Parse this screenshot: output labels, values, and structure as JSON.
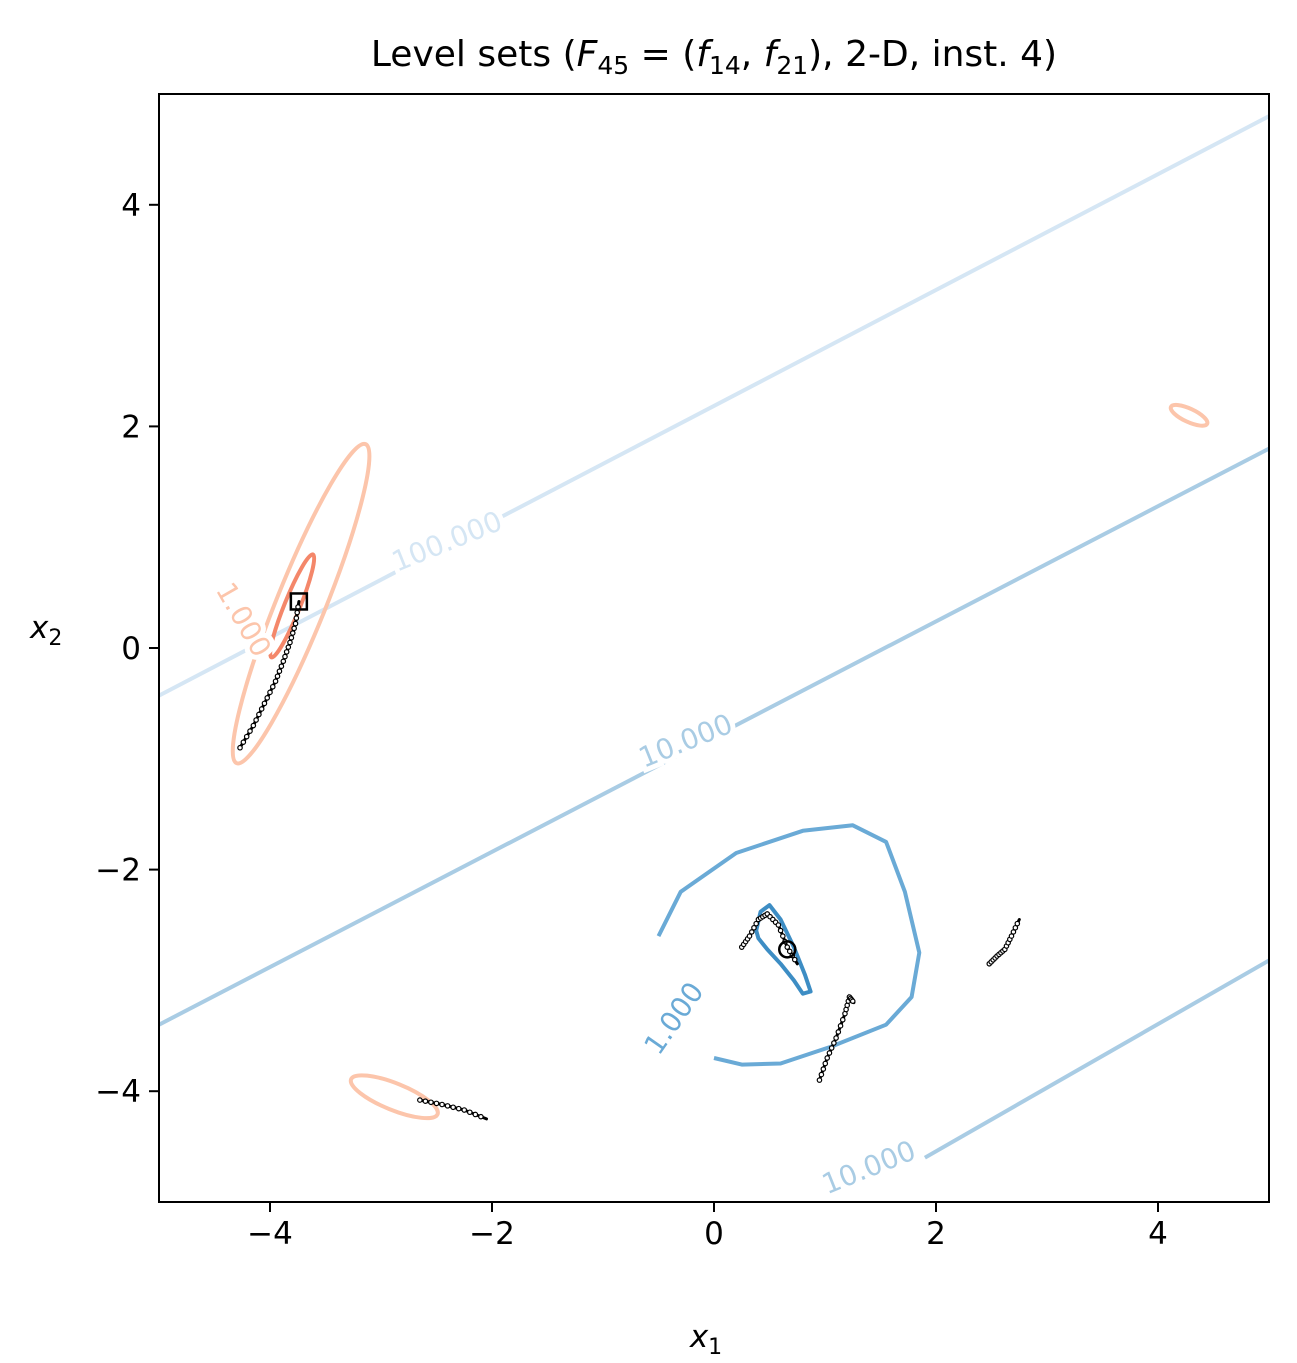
{
  "chart_data": {
    "type": "contour",
    "title_parts": {
      "pre": "Level sets (",
      "F": "F",
      "F_sub": "45",
      "eq": " = (",
      "f1": "f",
      "f1_sub": "14",
      "sep": ", ",
      "f2": "f",
      "f2_sub": "21",
      "post": "), 2-D, inst. 4)"
    },
    "xlabel": {
      "var": "x",
      "sub": "1"
    },
    "ylabel": {
      "var": "x",
      "sub": "2"
    },
    "xlim": [
      -5,
      5
    ],
    "ylim": [
      -5,
      5
    ],
    "xticks": [
      -4,
      -2,
      0,
      2,
      4
    ],
    "yticks": [
      -4,
      -2,
      0,
      2,
      4
    ],
    "xtick_labels": [
      "−4",
      "−2",
      "0",
      "2",
      "4"
    ],
    "ytick_labels": [
      "−4",
      "−2",
      "0",
      "2",
      "4"
    ],
    "colors": {
      "blue_10": "#a9cce4",
      "blue_100": "#d5e6f4",
      "blue_1": "#6aaad6",
      "blue_inner": "#3d8dc4",
      "red_outer": "#fcc5ab",
      "red_inner": "#f4876a"
    },
    "contour_labels": [
      {
        "text": "100.000",
        "x": -2.4,
        "y": 0.95,
        "angle": 22,
        "color": "#d5e6f4"
      },
      {
        "text": "10.000",
        "x": -0.25,
        "y": -0.85,
        "angle": 22,
        "color": "#a9cce4"
      },
      {
        "text": "10.000",
        "x": 1.4,
        "y": -4.7,
        "angle": 22,
        "color": "#a9cce4"
      },
      {
        "text": "1.000",
        "x": -0.35,
        "y": -3.35,
        "angle": 55,
        "color": "#6aaad6"
      },
      {
        "text": "1.000",
        "x": -4.25,
        "y": 0.25,
        "angle": -60,
        "color": "#fcc5ab"
      }
    ],
    "blue_lines": [
      {
        "level": "100.000",
        "points": [
          [
            -5,
            -0.43
          ],
          [
            5,
            4.8
          ]
        ]
      },
      {
        "level": "10.000",
        "points": [
          [
            -5,
            -3.4
          ],
          [
            5,
            1.8
          ]
        ]
      },
      {
        "level": "10.000",
        "points": [
          [
            1.9,
            -4.6
          ],
          [
            5,
            -2.82
          ]
        ]
      }
    ],
    "blue_closed_1": [
      [
        -0.5,
        -2.6
      ],
      [
        -0.3,
        -2.2
      ],
      [
        0.2,
        -1.85
      ],
      [
        0.8,
        -1.65
      ],
      [
        1.25,
        -1.6
      ],
      [
        1.55,
        -1.75
      ],
      [
        1.72,
        -2.2
      ],
      [
        1.85,
        -2.75
      ],
      [
        1.78,
        -3.15
      ],
      [
        1.55,
        -3.4
      ],
      [
        1.05,
        -3.6
      ],
      [
        0.6,
        -3.75
      ],
      [
        0.25,
        -3.76
      ],
      [
        0.0,
        -3.7
      ]
    ],
    "blue_closed_inner": [
      [
        0.38,
        -2.55
      ],
      [
        0.42,
        -2.38
      ],
      [
        0.5,
        -2.32
      ],
      [
        0.6,
        -2.45
      ],
      [
        0.72,
        -2.7
      ],
      [
        0.82,
        -2.95
      ],
      [
        0.87,
        -3.1
      ],
      [
        0.8,
        -3.12
      ],
      [
        0.72,
        -3.0
      ],
      [
        0.6,
        -2.85
      ],
      [
        0.48,
        -2.72
      ],
      [
        0.4,
        -2.62
      ],
      [
        0.38,
        -2.55
      ]
    ],
    "red_ellipses": [
      {
        "cx": -3.72,
        "cy": 0.4,
        "rx": 1.55,
        "ry": 0.22,
        "angle": 68,
        "color": "#fcc5ab"
      },
      {
        "cx": -3.8,
        "cy": 0.38,
        "rx": 0.5,
        "ry": 0.07,
        "angle": 68,
        "color": "#f4876a"
      },
      {
        "cx": -2.88,
        "cy": -4.05,
        "rx": 0.42,
        "ry": 0.12,
        "angle": -22,
        "color": "#fcc5ab"
      },
      {
        "cx": 4.28,
        "cy": 2.1,
        "rx": 0.18,
        "ry": 0.06,
        "angle": -25,
        "color": "#fcc5ab"
      }
    ],
    "trajectories": [
      [
        [
          -4.27,
          -0.9
        ],
        [
          -4.15,
          -0.7
        ],
        [
          -4.05,
          -0.5
        ],
        [
          -3.95,
          -0.3
        ],
        [
          -3.88,
          -0.12
        ],
        [
          -3.82,
          0.05
        ],
        [
          -3.77,
          0.22
        ],
        [
          -3.74,
          0.42
        ]
      ],
      [
        [
          0.25,
          -2.7
        ],
        [
          0.32,
          -2.6
        ],
        [
          0.4,
          -2.45
        ],
        [
          0.48,
          -2.4
        ],
        [
          0.58,
          -2.5
        ],
        [
          0.66,
          -2.7
        ],
        [
          0.75,
          -2.85
        ]
      ],
      [
        [
          0.95,
          -3.9
        ],
        [
          1.02,
          -3.7
        ],
        [
          1.1,
          -3.52
        ],
        [
          1.18,
          -3.3
        ],
        [
          1.22,
          -3.15
        ],
        [
          1.26,
          -3.2
        ]
      ],
      [
        [
          2.48,
          -2.85
        ],
        [
          2.55,
          -2.78
        ],
        [
          2.62,
          -2.72
        ],
        [
          2.68,
          -2.6
        ],
        [
          2.75,
          -2.45
        ]
      ],
      [
        [
          -2.65,
          -4.08
        ],
        [
          -2.45,
          -4.12
        ],
        [
          -2.25,
          -4.17
        ],
        [
          -2.05,
          -4.25
        ]
      ]
    ],
    "markers": [
      {
        "shape": "square",
        "x": -3.74,
        "y": 0.42
      },
      {
        "shape": "circle",
        "x": 0.66,
        "y": -2.72
      }
    ]
  }
}
